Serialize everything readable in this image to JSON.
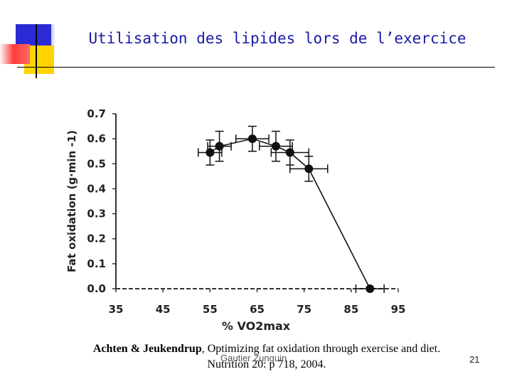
{
  "slide": {
    "title": "Utilisation des lipides lors de l’exercice",
    "citation_authors": "Achten & Jeukendrup",
    "citation_rest_line1": ", Optimizing fat oxidation through exercise and diet.",
    "citation_line2": "Nutrition 20: p 718, 2004.",
    "footer_author": "Gautier Zunquin",
    "page_number": "21",
    "colors": {
      "accent_blue": "#2b2bd6",
      "accent_yellow": "#ffd400",
      "accent_red": "#ff3b3b",
      "title": "#1a1aa8"
    }
  },
  "chart_data": {
    "type": "line",
    "title": "",
    "xlabel": "% VO2max",
    "ylabel": "Fat oxidation (g·min -1)",
    "xlim": [
      35,
      95
    ],
    "ylim": [
      0.0,
      0.7
    ],
    "x_ticks": [
      "35",
      "45",
      "55",
      "65",
      "75",
      "85",
      "95"
    ],
    "y_ticks": [
      "0.0",
      "0.1",
      "0.2",
      "0.3",
      "0.4",
      "0.5",
      "0.6",
      "0.7"
    ],
    "grid": false,
    "series": [
      {
        "color": "#111111",
        "points": [
          {
            "x": 55,
            "y": 0.545,
            "x_err": 2.5,
            "y_err": 0.05
          },
          {
            "x": 57,
            "y": 0.57,
            "x_err": 2.5,
            "y_err": 0.06
          },
          {
            "x": 64,
            "y": 0.6,
            "x_err": 3.5,
            "y_err": 0.05
          },
          {
            "x": 69,
            "y": 0.57,
            "x_err": 3.5,
            "y_err": 0.06
          },
          {
            "x": 72,
            "y": 0.545,
            "x_err": 4.0,
            "y_err": 0.05
          },
          {
            "x": 76,
            "y": 0.48,
            "x_err": 4.0,
            "y_err": 0.05
          },
          {
            "x": 89,
            "y": 0.0,
            "x_err": 3.0,
            "y_err": 0.0
          }
        ]
      }
    ]
  }
}
